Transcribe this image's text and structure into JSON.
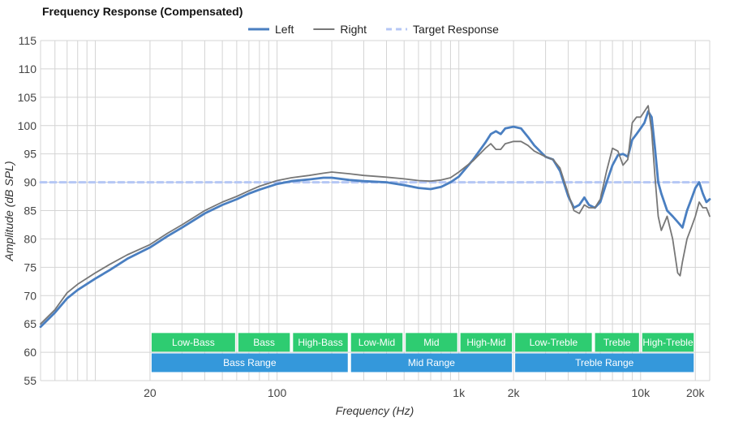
{
  "chart_data": {
    "type": "line",
    "title": "Frequency Response (Compensated)",
    "xlabel": "Frequency (Hz)",
    "ylabel": "Amplitude (dB SPL)",
    "x_scale": "log",
    "xlim": [
      5,
      24000
    ],
    "ylim": [
      55,
      115
    ],
    "x_ticks": [
      {
        "value": 20,
        "label": "20"
      },
      {
        "value": 100,
        "label": "100"
      },
      {
        "value": 1000,
        "label": "1k"
      },
      {
        "value": 2000,
        "label": "2k"
      },
      {
        "value": 10000,
        "label": "10k"
      },
      {
        "value": 20000,
        "label": "20k"
      }
    ],
    "y_ticks": [
      55,
      60,
      65,
      70,
      75,
      80,
      85,
      90,
      95,
      100,
      105,
      110,
      115
    ],
    "grid": true,
    "legend_position": "top-center",
    "series": [
      {
        "name": "Left",
        "color": "#4a7fc1",
        "style": "solid",
        "points": [
          [
            5,
            64.5
          ],
          [
            6,
            67
          ],
          [
            7,
            69.5
          ],
          [
            8,
            71
          ],
          [
            10,
            73
          ],
          [
            12,
            74.5
          ],
          [
            15,
            76.5
          ],
          [
            20,
            78.5
          ],
          [
            25,
            80.5
          ],
          [
            30,
            82
          ],
          [
            40,
            84.5
          ],
          [
            50,
            86
          ],
          [
            60,
            87
          ],
          [
            70,
            88
          ],
          [
            80,
            88.7
          ],
          [
            100,
            89.7
          ],
          [
            120,
            90.2
          ],
          [
            150,
            90.5
          ],
          [
            180,
            90.8
          ],
          [
            200,
            90.8
          ],
          [
            250,
            90.4
          ],
          [
            300,
            90.2
          ],
          [
            400,
            90
          ],
          [
            500,
            89.5
          ],
          [
            600,
            89
          ],
          [
            700,
            88.8
          ],
          [
            800,
            89.2
          ],
          [
            900,
            90
          ],
          [
            1000,
            91
          ],
          [
            1200,
            94
          ],
          [
            1400,
            97
          ],
          [
            1500,
            98.5
          ],
          [
            1600,
            99
          ],
          [
            1700,
            98.5
          ],
          [
            1800,
            99.5
          ],
          [
            2000,
            99.8
          ],
          [
            2200,
            99.5
          ],
          [
            2400,
            98
          ],
          [
            2600,
            96.5
          ],
          [
            3000,
            94.5
          ],
          [
            3300,
            94
          ],
          [
            3600,
            92
          ],
          [
            4000,
            87.5
          ],
          [
            4300,
            85.5
          ],
          [
            4600,
            86
          ],
          [
            4900,
            87.3
          ],
          [
            5200,
            86
          ],
          [
            5600,
            85.5
          ],
          [
            6000,
            86.5
          ],
          [
            6500,
            90
          ],
          [
            7000,
            93
          ],
          [
            7500,
            94.8
          ],
          [
            8000,
            95
          ],
          [
            8500,
            94.5
          ],
          [
            9000,
            97.5
          ],
          [
            9500,
            98.5
          ],
          [
            10000,
            99.5
          ],
          [
            10500,
            100.5
          ],
          [
            11000,
            102.5
          ],
          [
            11500,
            101.5
          ],
          [
            12000,
            96
          ],
          [
            12500,
            90
          ],
          [
            13000,
            88
          ],
          [
            14000,
            85
          ],
          [
            15000,
            84
          ],
          [
            16000,
            83
          ],
          [
            17000,
            82
          ],
          [
            18000,
            85
          ],
          [
            19000,
            87
          ],
          [
            20000,
            89
          ],
          [
            21000,
            90
          ],
          [
            22000,
            88
          ],
          [
            23000,
            86.5
          ],
          [
            24000,
            87
          ]
        ]
      },
      {
        "name": "Right",
        "color": "#777777",
        "style": "solid",
        "points": [
          [
            5,
            65
          ],
          [
            6,
            67.5
          ],
          [
            7,
            70.5
          ],
          [
            8,
            72
          ],
          [
            10,
            74
          ],
          [
            12,
            75.5
          ],
          [
            15,
            77.2
          ],
          [
            20,
            79
          ],
          [
            25,
            81
          ],
          [
            30,
            82.5
          ],
          [
            40,
            85
          ],
          [
            50,
            86.5
          ],
          [
            60,
            87.5
          ],
          [
            70,
            88.5
          ],
          [
            80,
            89.3
          ],
          [
            100,
            90.3
          ],
          [
            120,
            90.8
          ],
          [
            150,
            91.2
          ],
          [
            180,
            91.6
          ],
          [
            200,
            91.8
          ],
          [
            250,
            91.5
          ],
          [
            300,
            91.2
          ],
          [
            400,
            90.9
          ],
          [
            500,
            90.6
          ],
          [
            600,
            90.3
          ],
          [
            700,
            90.2
          ],
          [
            800,
            90.4
          ],
          [
            900,
            90.8
          ],
          [
            1000,
            91.8
          ],
          [
            1200,
            93.8
          ],
          [
            1400,
            96
          ],
          [
            1500,
            96.8
          ],
          [
            1600,
            95.8
          ],
          [
            1700,
            95.8
          ],
          [
            1800,
            96.8
          ],
          [
            2000,
            97.2
          ],
          [
            2200,
            97.2
          ],
          [
            2400,
            96.5
          ],
          [
            2600,
            95.5
          ],
          [
            3000,
            94.5
          ],
          [
            3300,
            94
          ],
          [
            3600,
            92.5
          ],
          [
            4000,
            88
          ],
          [
            4300,
            85
          ],
          [
            4600,
            84.5
          ],
          [
            4900,
            86
          ],
          [
            5200,
            85.5
          ],
          [
            5600,
            85.5
          ],
          [
            6000,
            87
          ],
          [
            6500,
            92
          ],
          [
            7000,
            96
          ],
          [
            7500,
            95.5
          ],
          [
            8000,
            93
          ],
          [
            8500,
            94
          ],
          [
            9000,
            100.5
          ],
          [
            9500,
            101.5
          ],
          [
            10000,
            101.5
          ],
          [
            10500,
            102.5
          ],
          [
            11000,
            103.5
          ],
          [
            11500,
            99
          ],
          [
            12000,
            91
          ],
          [
            12500,
            84
          ],
          [
            13000,
            81.5
          ],
          [
            14000,
            84
          ],
          [
            15000,
            80
          ],
          [
            16000,
            74
          ],
          [
            16500,
            73.5
          ],
          [
            17000,
            76
          ],
          [
            18000,
            80
          ],
          [
            19000,
            82
          ],
          [
            20000,
            84
          ],
          [
            21000,
            86.5
          ],
          [
            22000,
            85.5
          ],
          [
            23000,
            85.5
          ],
          [
            24000,
            84
          ]
        ]
      },
      {
        "name": "Target Response",
        "color": "#b5c7f5",
        "style": "dashed",
        "points": [
          [
            5,
            90
          ],
          [
            24000,
            90
          ]
        ]
      }
    ],
    "annotation_bands": [
      {
        "row": "upper",
        "label": "Low-Bass",
        "start": 20,
        "end": 60,
        "color": "#2ecc71"
      },
      {
        "row": "upper",
        "label": "Bass",
        "start": 60,
        "end": 120,
        "color": "#2ecc71"
      },
      {
        "row": "upper",
        "label": "High-Bass",
        "start": 120,
        "end": 250,
        "color": "#2ecc71"
      },
      {
        "row": "upper",
        "label": "Low-Mid",
        "start": 250,
        "end": 500,
        "color": "#2ecc71"
      },
      {
        "row": "upper",
        "label": "Mid",
        "start": 500,
        "end": 1000,
        "color": "#2ecc71"
      },
      {
        "row": "upper",
        "label": "High-Mid",
        "start": 1000,
        "end": 2000,
        "color": "#2ecc71"
      },
      {
        "row": "upper",
        "label": "Low-Treble",
        "start": 2000,
        "end": 5500,
        "color": "#2ecc71"
      },
      {
        "row": "upper",
        "label": "Treble",
        "start": 5500,
        "end": 10000,
        "color": "#2ecc71"
      },
      {
        "row": "upper",
        "label": "High-Treble",
        "start": 10000,
        "end": 20000,
        "color": "#2ecc71"
      },
      {
        "row": "lower",
        "label": "Bass Range",
        "start": 20,
        "end": 250,
        "color": "#3498db"
      },
      {
        "row": "lower",
        "label": "Mid Range",
        "start": 250,
        "end": 2000,
        "color": "#3498db"
      },
      {
        "row": "lower",
        "label": "Treble Range",
        "start": 2000,
        "end": 20000,
        "color": "#3498db"
      }
    ]
  }
}
